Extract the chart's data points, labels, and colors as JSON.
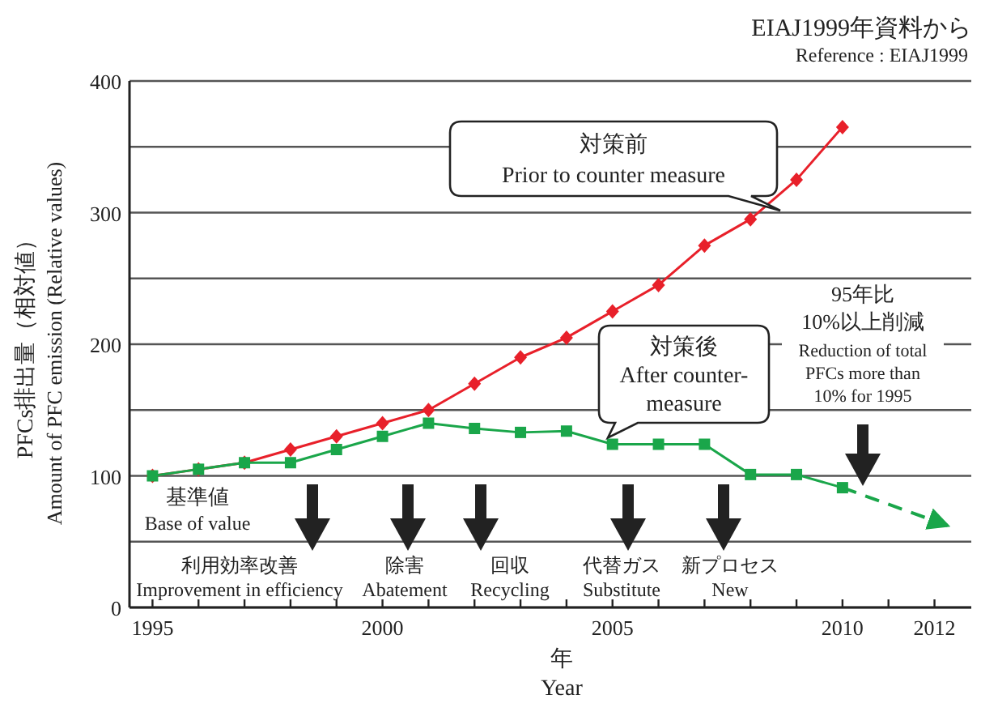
{
  "chart_data": {
    "type": "line",
    "xlabel": "年\nYear",
    "ylabel": "PFCs排出量（相対値）\nAmount of PFC emission (Relative values)",
    "x": [
      1995,
      1996,
      1997,
      1998,
      1999,
      2000,
      2001,
      2002,
      2003,
      2004,
      2005,
      2006,
      2007,
      2008,
      2009,
      2010
    ],
    "series": [
      {
        "color": "#e8202a",
        "marker": "diamond",
        "values": [
          100,
          105,
          110,
          120,
          130,
          140,
          150,
          170,
          190,
          205,
          225,
          245,
          275,
          295,
          325,
          365
        ]
      },
      {
        "color": "#1aa64a",
        "marker": "square",
        "values": [
          100,
          105,
          110,
          110,
          120,
          130,
          140,
          136,
          133,
          134,
          124,
          124,
          124,
          101,
          101,
          91
        ]
      },
      {
        "color": "#1aa64a",
        "marker": "none",
        "line_style": "dashed",
        "x": [
          2010,
          2012.3
        ],
        "values": [
          91,
          62
        ]
      }
    ],
    "xlim": [
      1994.5,
      2012.8
    ],
    "xticks": [
      1995,
      {
        "value": 1996,
        "label": null
      },
      {
        "value": 1997,
        "label": null
      },
      {
        "value": 1998,
        "label": null
      },
      {
        "value": 1999,
        "label": null
      },
      2000,
      {
        "value": 2001,
        "label": null
      },
      {
        "value": 2002,
        "label": null
      },
      {
        "value": 2003,
        "label": null
      },
      {
        "value": 2004,
        "label": null
      },
      2005,
      {
        "value": 2006,
        "label": null
      },
      {
        "value": 2007,
        "label": null
      },
      {
        "value": 2008,
        "label": null
      },
      {
        "value": 2009,
        "label": null
      },
      2010,
      {
        "value": 2011,
        "label": null
      },
      2012
    ],
    "ylim": [
      0,
      400
    ],
    "yticks": [
      0,
      {
        "value": 50,
        "label": null
      },
      100,
      {
        "value": 150,
        "label": null
      },
      200,
      {
        "value": 250,
        "label": null
      },
      300,
      {
        "value": 350,
        "label": null
      },
      400
    ],
    "grid": "y",
    "annotations": [
      "EIAJ1999年資料から",
      "Reference : EIAJ1999",
      "対策前\nPrior  to counter measure",
      {
        "text": "対策後\nAfter counter-\nmeasure",
        "x": 2004.9,
        "y": 129
      },
      "95年比\n10%以上削減\nReduction of total\nPFCs more than\n10% for 1995",
      {
        "text": "基準値\nBase of value",
        "x": 1995,
        "y": 100
      },
      "利用効率改善\nImprovement in efficiency",
      "除害\nAbatement",
      "回収\nRecycling",
      "代替ガス\nSubstitute",
      "新プロセス\nNew"
    ]
  }
}
